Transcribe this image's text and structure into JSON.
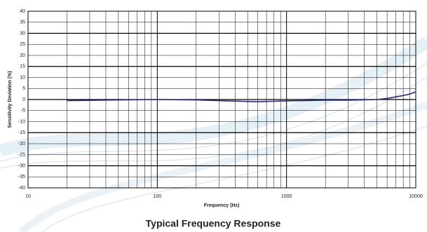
{
  "chart_data": {
    "type": "line",
    "title": "Typical Frequency Response",
    "x_label": "Frequency (Hz)",
    "y_label": "Sensitivity Deviation (%)",
    "x_scale": "log",
    "xlim": [
      10,
      10000
    ],
    "xticks": [
      10,
      100,
      1000,
      10000
    ],
    "x_minor_grid": [
      20,
      30,
      40,
      50,
      60,
      70,
      80,
      90,
      200,
      300,
      400,
      500,
      600,
      700,
      800,
      900,
      2000,
      3000,
      4000,
      5000,
      6000,
      7000,
      8000,
      9000
    ],
    "ylim": [
      -40,
      40
    ],
    "yticks": [
      -40,
      -35,
      -30,
      -25,
      -20,
      -15,
      -10,
      -5,
      0,
      5,
      10,
      15,
      20,
      25,
      30,
      35,
      40
    ],
    "grid": true,
    "x": [
      20,
      50,
      100,
      200,
      300,
      600,
      1000,
      2000,
      3000,
      5000,
      6000,
      7000,
      8000,
      9000,
      10000
    ],
    "series": [
      {
        "color": "#2b2b78",
        "values": [
          -0.5,
          -0.2,
          0,
          -0.2,
          -0.5,
          -1,
          -0.6,
          -0.3,
          -0.3,
          0,
          0.5,
          1.2,
          1.8,
          2.5,
          3.5
        ]
      }
    ]
  }
}
